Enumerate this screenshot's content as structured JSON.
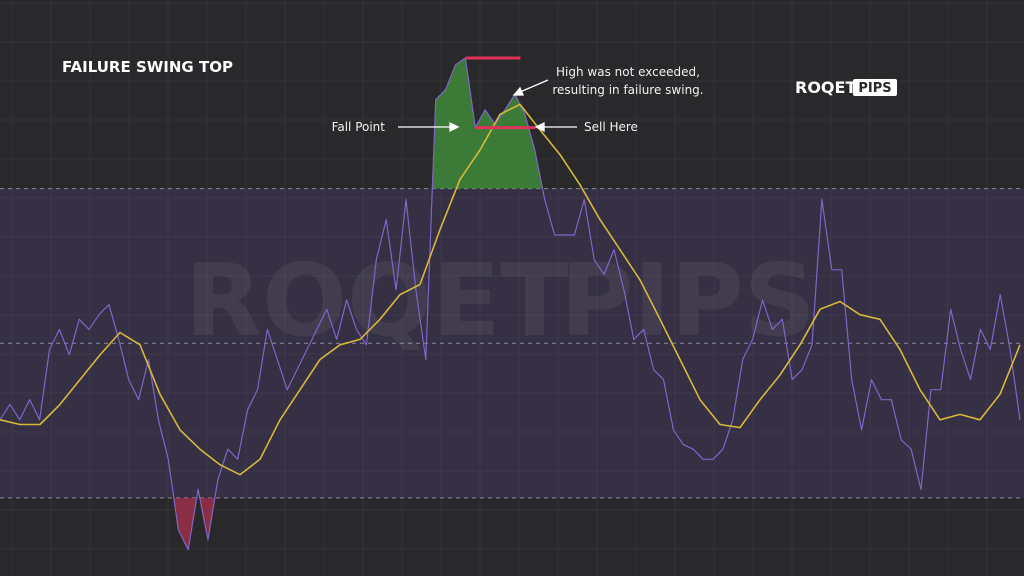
{
  "chart_data": {
    "type": "line",
    "title": "FAILURE SWING TOP",
    "annotations": [
      "High was not exceeded,",
      "resulting in failure swing.",
      "Fall Point",
      "Sell Here"
    ],
    "brand": [
      "ROQET",
      "PIPS"
    ],
    "ylim": [
      19.9,
      94.4
    ],
    "levels": [
      30,
      50,
      70
    ],
    "grid": true,
    "series": [
      {
        "color": "#8065c8",
        "values": [
          40.1,
          42.1,
          40.1,
          42.7,
          40.1,
          49.2,
          51.8,
          48.5,
          53.1,
          51.8,
          53.7,
          55.0,
          50.5,
          45.3,
          42.7,
          47.9,
          40.1,
          35.0,
          25.9,
          23.3,
          31.1,
          24.6,
          32.4,
          36.3,
          35.0,
          41.4,
          44.0,
          51.8,
          47.9,
          44.0,
          46.6,
          49.2,
          51.8,
          54.4,
          50.5,
          55.6,
          51.8,
          49.8,
          60.8,
          66.0,
          56.9,
          68.6,
          56.9,
          47.9,
          81.5,
          82.8,
          86.0,
          86.9,
          77.9,
          80.2,
          78.3,
          80.2,
          82.2,
          79.6,
          75.0,
          68.6,
          64.0,
          64.0,
          64.0,
          68.6,
          60.8,
          58.9,
          62.1,
          56.9,
          50.5,
          51.8,
          46.6,
          45.3,
          38.8,
          36.9,
          36.3,
          35.0,
          35.0,
          36.3,
          40.1,
          47.9,
          50.5,
          55.6,
          51.8,
          53.1,
          45.3,
          46.6,
          49.8,
          68.6,
          59.5,
          59.5,
          45.3,
          38.8,
          45.3,
          42.7,
          42.7,
          37.5,
          36.3,
          31.1,
          44.0,
          44.0,
          54.4,
          49.2,
          45.3,
          51.8,
          49.2,
          56.3,
          49.2,
          40.1
        ]
      },
      {
        "color": "#d6b83c",
        "values": [
          40.1,
          39.5,
          39.5,
          42.1,
          45.3,
          48.5,
          51.4,
          49.8,
          43.4,
          38.8,
          36.3,
          34.3,
          33.0,
          35.0,
          40.1,
          44.0,
          47.9,
          49.8,
          50.5,
          53.1,
          56.3,
          57.6,
          64.7,
          71.2,
          75.0,
          79.6,
          80.9,
          77.6,
          74.4,
          70.5,
          66.0,
          62.1,
          58.2,
          53.1,
          47.9,
          42.7,
          39.5,
          39.1,
          42.7,
          45.9,
          49.8,
          54.4,
          55.4,
          53.7,
          53.1,
          49.2,
          44.0,
          40.1,
          40.8,
          40.1,
          43.4,
          49.8
        ]
      }
    ]
  }
}
